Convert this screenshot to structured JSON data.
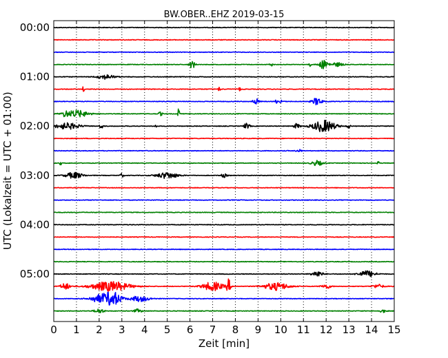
{
  "chart_data": {
    "type": "line",
    "title": "BW.OBER..EHZ 2019-03-15",
    "xlabel": "Zeit  [min]",
    "ylabel": "UTC (Lokalzeit = UTC + 01:00)",
    "xlim": [
      0,
      15
    ],
    "x_ticks": [
      "0",
      "1",
      "2",
      "3",
      "4",
      "5",
      "6",
      "7",
      "8",
      "9",
      "10",
      "11",
      "12",
      "13",
      "14",
      "15"
    ],
    "y_tick_labels": [
      "00:00",
      "01:00",
      "02:00",
      "03:00",
      "04:00",
      "05:00"
    ],
    "grid": "vertical dotted",
    "trace_colors": [
      "#000000",
      "#ff0000",
      "#0000ff",
      "#008000"
    ],
    "traces": [
      {
        "start": "00:00",
        "events": []
      },
      {
        "start": "00:15",
        "events": []
      },
      {
        "start": "00:30",
        "events": []
      },
      {
        "start": "00:45",
        "events": [
          [
            6.1,
            0.3,
            0.6
          ],
          [
            11.9,
            0.5,
            0.7
          ],
          [
            12.5,
            0.6,
            0.3
          ],
          [
            11.3,
            0.1,
            0.3
          ],
          [
            9.6,
            0.2,
            0.2
          ]
        ]
      },
      {
        "start": "01:00",
        "events": [
          [
            2.3,
            0.9,
            0.35
          ]
        ]
      },
      {
        "start": "01:15",
        "events": [
          [
            1.3,
            0.1,
            0.4
          ],
          [
            7.3,
            0.1,
            0.4
          ],
          [
            8.2,
            0.1,
            0.35
          ]
        ]
      },
      {
        "start": "01:30",
        "events": [
          [
            8.9,
            0.3,
            0.5
          ],
          [
            11.6,
            0.5,
            0.6
          ],
          [
            10.0,
            0.1,
            0.3
          ],
          [
            9.8,
            0.1,
            0.3
          ]
        ]
      },
      {
        "start": "01:45",
        "events": [
          [
            1.0,
            1.3,
            0.55
          ],
          [
            5.5,
            0.1,
            0.9
          ],
          [
            4.7,
            0.2,
            0.3
          ],
          [
            0.5,
            0.2,
            0.4
          ]
        ]
      },
      {
        "start": "02:00",
        "events": [
          [
            0.6,
            1.3,
            0.5
          ],
          [
            2.1,
            0.2,
            0.4
          ],
          [
            4.5,
            0.1,
            0.3
          ],
          [
            8.5,
            0.3,
            0.45
          ],
          [
            10.7,
            0.3,
            0.4
          ],
          [
            11.9,
            1.2,
            0.95
          ],
          [
            13.0,
            0.2,
            0.3
          ]
        ]
      },
      {
        "start": "02:15",
        "events": []
      },
      {
        "start": "02:30",
        "events": [
          [
            10.8,
            0.3,
            0.2
          ]
        ]
      },
      {
        "start": "02:45",
        "events": [
          [
            11.6,
            0.6,
            0.4
          ],
          [
            0.3,
            0.1,
            0.3
          ],
          [
            14.3,
            0.1,
            0.3
          ]
        ]
      },
      {
        "start": "03:00",
        "events": [
          [
            0.9,
            0.9,
            0.5
          ],
          [
            5.0,
            1.1,
            0.5
          ],
          [
            7.5,
            0.3,
            0.3
          ],
          [
            3.0,
            0.2,
            0.3
          ]
        ]
      },
      {
        "start": "03:15",
        "events": []
      },
      {
        "start": "03:30",
        "events": []
      },
      {
        "start": "03:45",
        "events": []
      },
      {
        "start": "04:00",
        "events": []
      },
      {
        "start": "04:15",
        "events": []
      },
      {
        "start": "04:30",
        "events": []
      },
      {
        "start": "04:45",
        "events": []
      },
      {
        "start": "05:00",
        "events": [
          [
            11.6,
            0.6,
            0.45
          ],
          [
            13.8,
            0.9,
            0.5
          ]
        ]
      },
      {
        "start": "05:15",
        "events": [
          [
            2.5,
            2.0,
            0.8
          ],
          [
            7.0,
            1.1,
            0.7
          ],
          [
            7.7,
            0.2,
            1.1
          ],
          [
            9.8,
            1.3,
            0.6
          ],
          [
            12.0,
            0.5,
            0.35
          ],
          [
            14.3,
            0.6,
            0.3
          ],
          [
            0.5,
            0.5,
            0.5
          ]
        ]
      },
      {
        "start": "05:30",
        "events": [
          [
            2.0,
            1.0,
            0.6
          ],
          [
            2.6,
            0.9,
            1.1
          ],
          [
            3.8,
            1.0,
            0.45
          ]
        ]
      },
      {
        "start": "05:45",
        "events": [
          [
            2.0,
            0.5,
            0.35
          ],
          [
            3.7,
            0.4,
            0.3
          ],
          [
            14.5,
            0.3,
            0.25
          ]
        ]
      }
    ]
  }
}
